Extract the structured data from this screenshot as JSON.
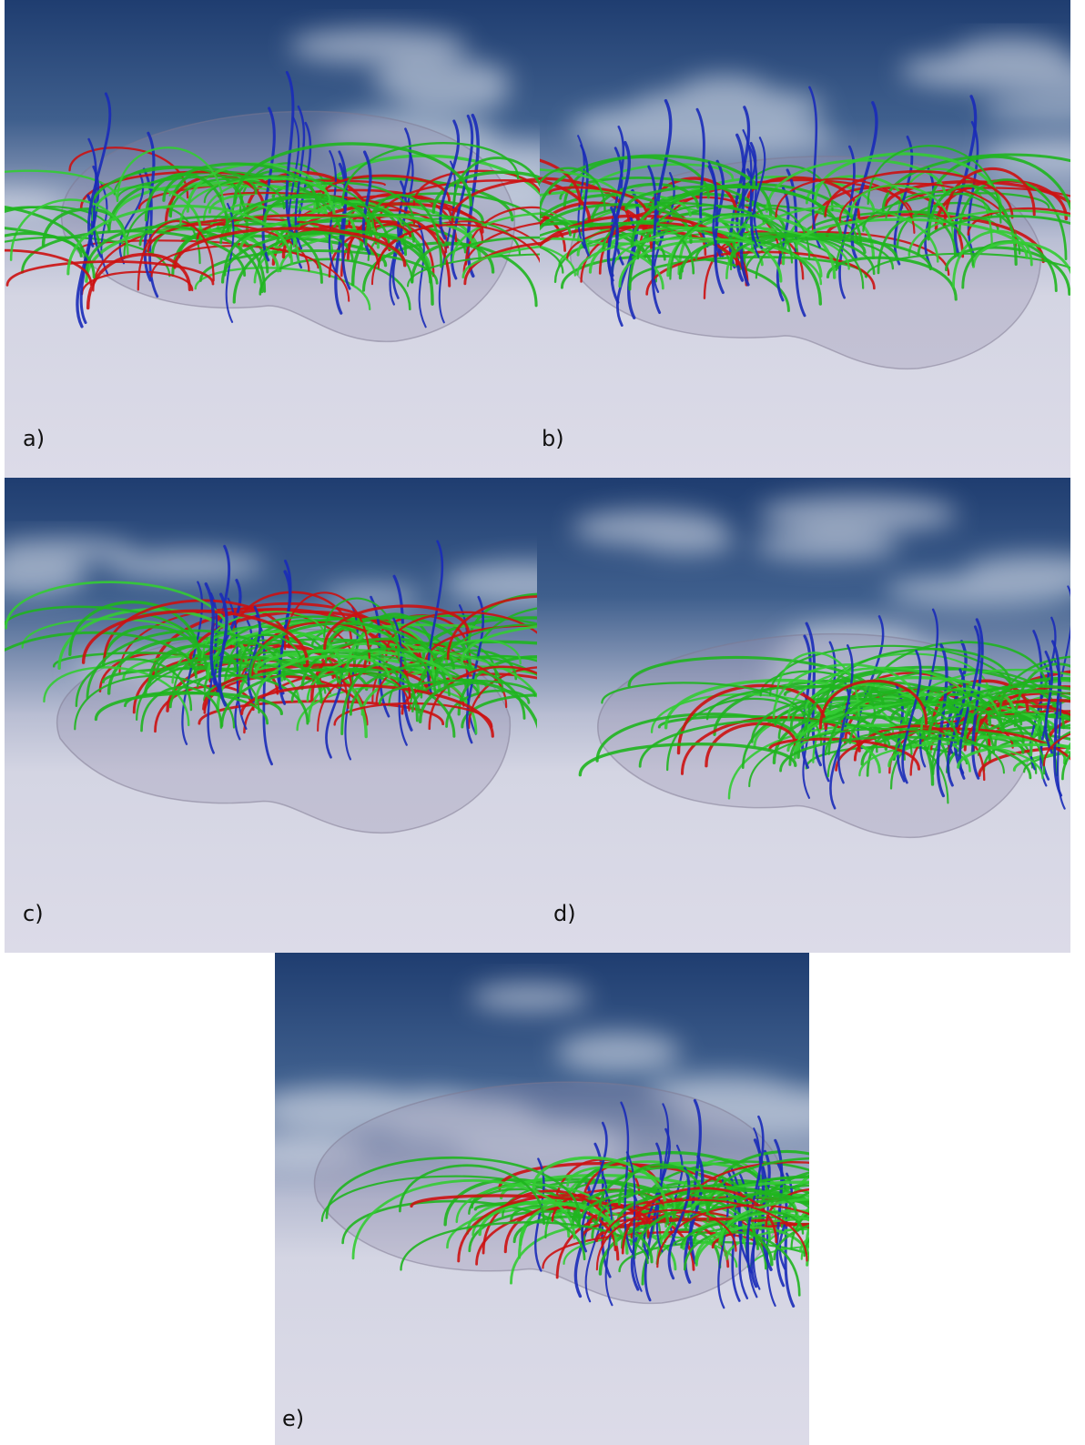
{
  "panels": [
    {
      "label": "a)"
    },
    {
      "label": "b)"
    },
    {
      "label": "c)"
    },
    {
      "label": "d)"
    },
    {
      "label": "e)"
    }
  ]
}
